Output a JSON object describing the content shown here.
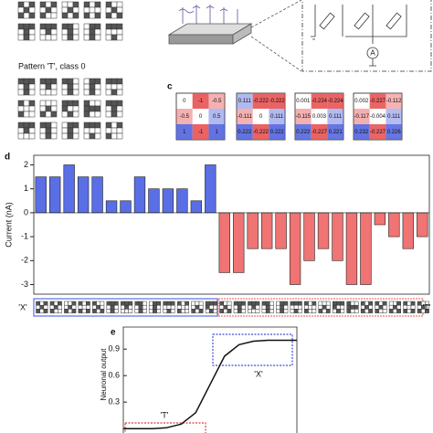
{
  "panel_labels": [
    "c",
    "d",
    "e"
  ],
  "pattern_caption": "Pattern 'T', class 0",
  "ammeter_label": "A",
  "weight_matrices": [
    [
      [
        0,
        -1,
        -0.5
      ],
      [
        -0.5,
        0,
        0.5
      ],
      [
        1,
        -1,
        1
      ]
    ],
    [
      [
        0.111,
        -0.222,
        -0.222
      ],
      [
        -0.111,
        0,
        0.111
      ],
      [
        0.222,
        -0.222,
        0.222
      ]
    ],
    [
      [
        0.001,
        -0.224,
        -0.224
      ],
      [
        -0.115,
        0.003,
        0.111
      ],
      [
        0.222,
        -0.227,
        0.221
      ]
    ],
    [
      [
        0.002,
        -0.227,
        -0.112
      ],
      [
        -0.117,
        -0.004,
        0.111
      ],
      [
        0.232,
        -0.227,
        0.226
      ]
    ]
  ],
  "chart_data": [
    {
      "type": "bar",
      "y_label": "Current (nA)",
      "categories": [
        null,
        null,
        null,
        null,
        null,
        null,
        null,
        null,
        null,
        null,
        null,
        null,
        null,
        null,
        null,
        null,
        null,
        null,
        null,
        null,
        null,
        null,
        null,
        null,
        null,
        null,
        null,
        null
      ],
      "series": [
        {
          "name": "'X'",
          "color": "#5a6ee6",
          "values": [
            1.5,
            1.5,
            2.0,
            1.5,
            1.5,
            0.5,
            0.5,
            1.5,
            1.0,
            1.0,
            1.0,
            0.5,
            2.0,
            null,
            null,
            null,
            null,
            null,
            null,
            null,
            null,
            null,
            null,
            null,
            null,
            null,
            null,
            null
          ]
        },
        {
          "name": "'T'",
          "color": "#ef7473",
          "values": [
            null,
            null,
            null,
            null,
            null,
            null,
            null,
            null,
            null,
            null,
            null,
            null,
            null,
            -2.5,
            -2.5,
            -1.5,
            -1.5,
            -1.5,
            -3.0,
            -2.0,
            -1.5,
            -2.0,
            -3.0,
            -3.0,
            -0.5,
            -1.0,
            -1.5,
            -1.0
          ]
        }
      ],
      "ylim": [
        -3.4,
        2.4
      ],
      "yticks": [
        2,
        1,
        0,
        -1,
        -2,
        -3
      ]
    },
    {
      "type": "line",
      "y_label": "Neuronal output",
      "color": "#111111",
      "x": [
        -3.5,
        -3,
        -2.5,
        -2,
        -1.5,
        -1,
        -0.5,
        0,
        0.5,
        1,
        1.5,
        2,
        2.5
      ],
      "values": [
        0,
        0,
        0,
        0.01,
        0.05,
        0.18,
        0.5,
        0.82,
        0.95,
        0.99,
        1,
        1,
        1
      ],
      "xlim": [
        -3.5,
        2.5
      ],
      "ylim": [
        -0.05,
        1.15
      ],
      "yticks": [
        0.9,
        0.6,
        0.3
      ],
      "annotations": [
        "'X'",
        "'T'"
      ]
    }
  ]
}
